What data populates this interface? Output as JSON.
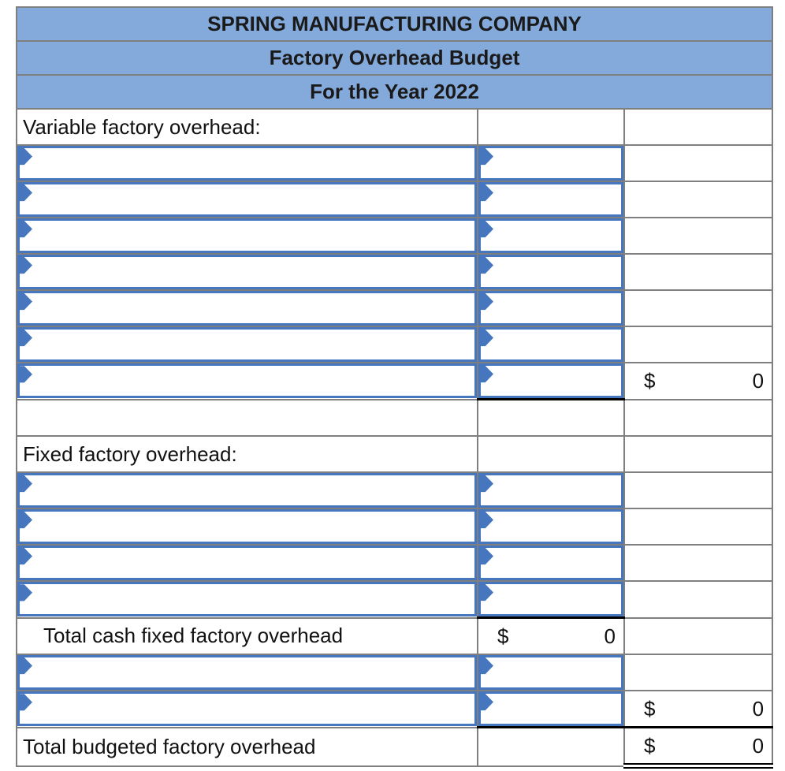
{
  "title_block": {
    "company": "SPRING MANUFACTURING COMPANY",
    "report": "Factory Overhead Budget",
    "period": "For the Year 2022"
  },
  "labels": {
    "variable_section": "Variable factory overhead:",
    "fixed_section": "Fixed factory overhead:",
    "total_cash_fixed": "Total cash fixed factory overhead",
    "total_budgeted": "Total budgeted factory overhead"
  },
  "amounts": {
    "variable_total": {
      "currency": "$",
      "value": "0"
    },
    "cash_fixed_total": {
      "currency": "$",
      "value": "0"
    },
    "fixed_total": {
      "currency": "$",
      "value": "0"
    },
    "budgeted_total": {
      "currency": "$",
      "value": "0"
    }
  },
  "structure": {
    "variable_input_rows": 7,
    "fixed_input_rows": 4,
    "adjustment_input_rows": 2
  },
  "colors": {
    "header_fill": "#84AADB",
    "grid_line": "#7F7F7F",
    "input_border": "#4677BE",
    "sum_line": "#000000"
  }
}
